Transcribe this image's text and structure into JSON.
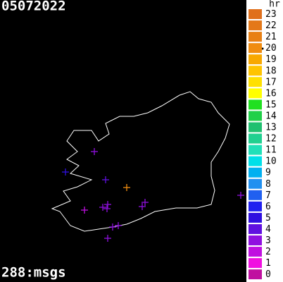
{
  "header": {
    "title": "05072022"
  },
  "footer": {
    "text": "288:msgs"
  },
  "legend": {
    "title": "hr",
    "items": [
      {
        "label": "23",
        "color": "#e0701c"
      },
      {
        "label": "22",
        "color": "#e47818"
      },
      {
        "label": "21",
        "color": "#e88014"
      },
      {
        "label": "20",
        "color": "#f08c10"
      },
      {
        "label": "19",
        "color": "#f8a800"
      },
      {
        "label": "18",
        "color": "#ffc400"
      },
      {
        "label": "17",
        "color": "#ffe000"
      },
      {
        "label": "16",
        "color": "#ffff00"
      },
      {
        "label": "15",
        "color": "#20e020"
      },
      {
        "label": "14",
        "color": "#20d048"
      },
      {
        "label": "13",
        "color": "#20c070"
      },
      {
        "label": "12",
        "color": "#20d090"
      },
      {
        "label": "11",
        "color": "#20e0b8"
      },
      {
        "label": "10",
        "color": "#00e0e8"
      },
      {
        "label": "9",
        "color": "#00b0f0"
      },
      {
        "label": "8",
        "color": "#2090f0"
      },
      {
        "label": "7",
        "color": "#2060f0"
      },
      {
        "label": "6",
        "color": "#2020f0"
      },
      {
        "label": "5",
        "color": "#3010e0"
      },
      {
        "label": "4",
        "color": "#6010e0"
      },
      {
        "label": "3",
        "color": "#9010e0"
      },
      {
        "label": "2",
        "color": "#c010e0"
      },
      {
        "label": "1",
        "color": "#f010e0"
      },
      {
        "label": "0",
        "color": "#c010a0"
      }
    ]
  }
}
